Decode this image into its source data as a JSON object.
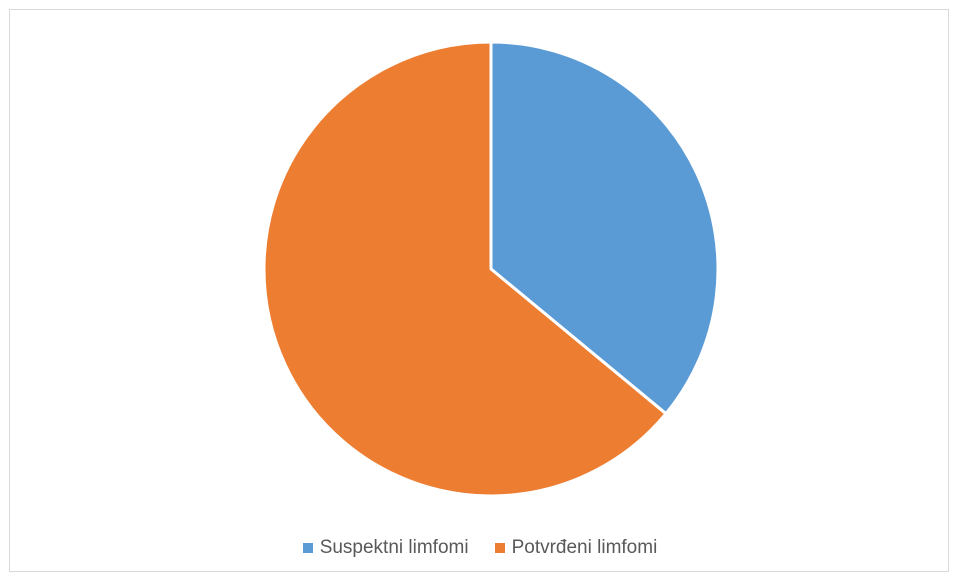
{
  "chart_data": {
    "type": "pie",
    "title": "",
    "legend_position": "bottom",
    "start_angle_deg": 0,
    "slices": [
      {
        "label": "Suspektni limfomi",
        "value": 36,
        "color": "#5b9bd5"
      },
      {
        "label": "Potvrđeni limfomi",
        "value": 64,
        "color": "#ed7d31"
      }
    ]
  }
}
